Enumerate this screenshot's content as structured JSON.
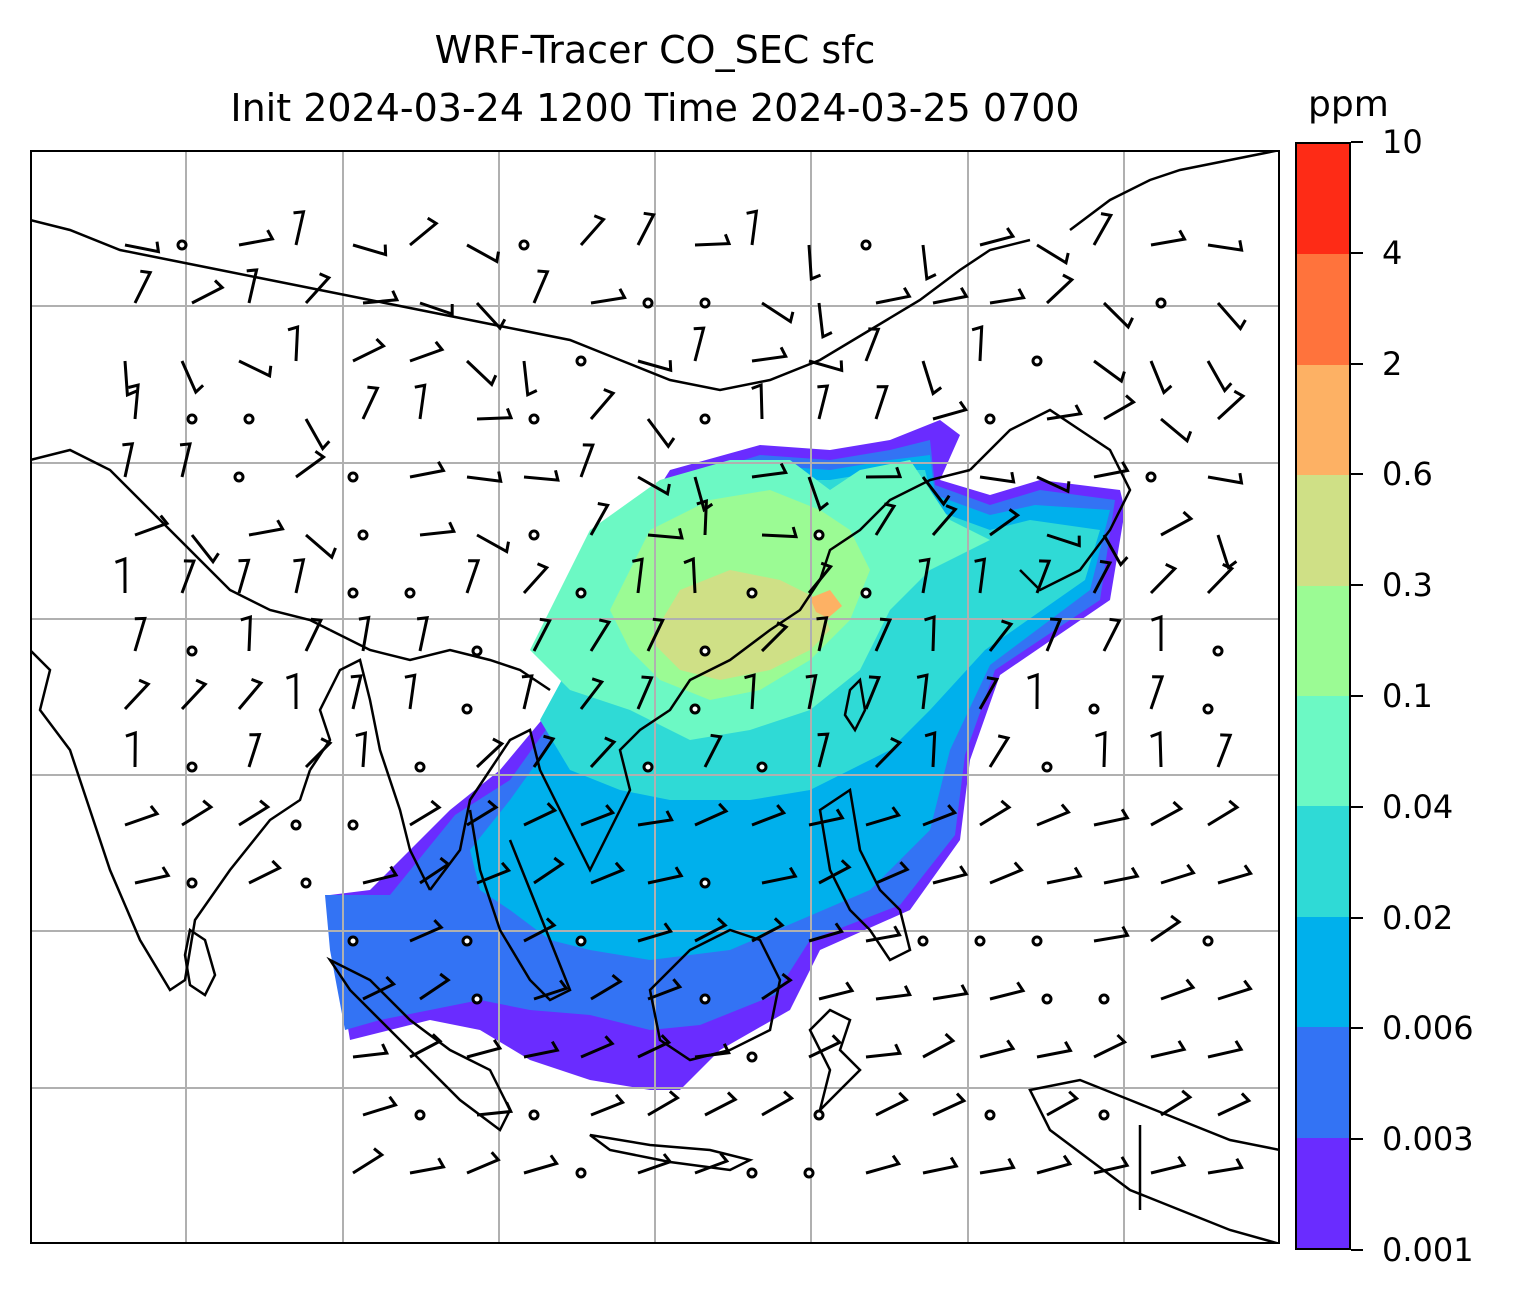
{
  "title": {
    "line1": "WRF-Tracer CO_SEC sfc",
    "line2": "Init 2024-03-24 1200 Time 2024-03-25 0700"
  },
  "colorbar": {
    "units": "ppm",
    "levels": [
      "0.001",
      "0.003",
      "0.006",
      "0.02",
      "0.04",
      "0.1",
      "0.3",
      "0.6",
      "2",
      "4",
      "10"
    ],
    "colors": [
      "#6a2cff",
      "#3373f4",
      "#00b0ec",
      "#2fdad6",
      "#6cf9c4",
      "#9bfb94",
      "#cfe086",
      "#fdb164",
      "#ff733c",
      "#fe2b16"
    ]
  },
  "map": {
    "region": "East and Southeast Asia",
    "features": [
      "coastlines",
      "country borders",
      "gridlines",
      "wind barbs",
      "calm-wind circles",
      "CO tracer concentration contours"
    ]
  }
}
